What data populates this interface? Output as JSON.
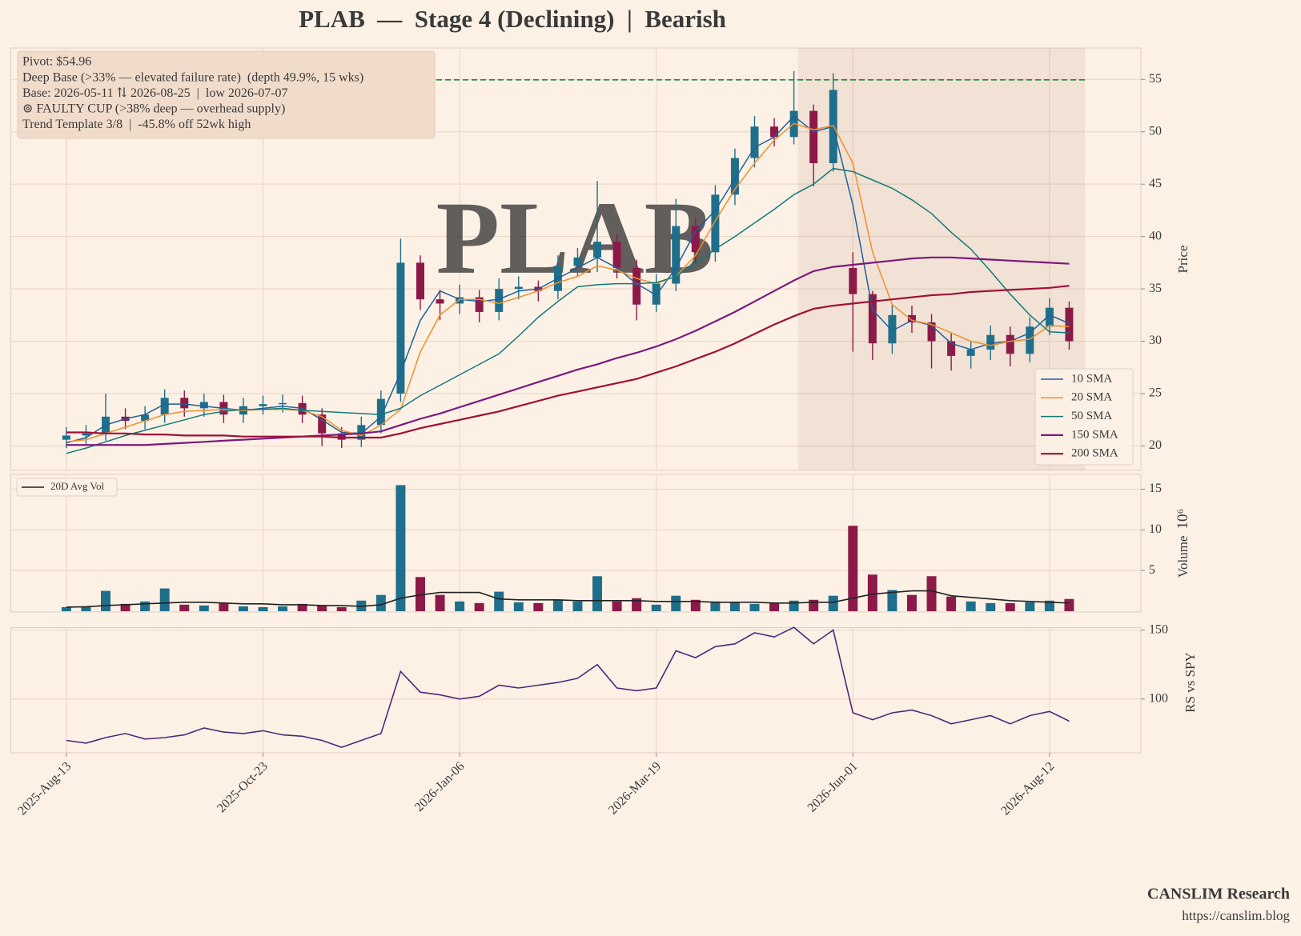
{
  "title": "PLAB  —  Stage 4 (Declining)  |  Bearish",
  "footer": {
    "brand": "CANSLIM Research",
    "url": "https://canslim.blog"
  },
  "chart_data": [
    {
      "type": "candlestick",
      "y_label": "Price",
      "watermark": "PLAB",
      "annotations": [
        "Pivot: $54.96",
        "Deep Base (>33% — elevated failure rate)  (depth 49.9%, 15 wks)",
        "Base: 2026-05-11 ⇅ 2026-08-25  |  low 2026-07-07",
        "⊚ FAULTY CUP (>38% deep — overhead supply)",
        "Trend Template 3/8  |  -45.8% off 52wk high"
      ],
      "pivot": 54.96,
      "pivot_color": "#1e8a3c",
      "highlight_xlim": [
        37.2,
        51.8
      ],
      "up_color": "#1f6f8b",
      "down_color": "#8c1a48",
      "ylim": [
        17.7,
        58.0
      ],
      "yticks": [
        20,
        25,
        30,
        35,
        40,
        45,
        50,
        55
      ],
      "grid": true,
      "legend": "lower right",
      "open": [
        20.6,
        21.0,
        21.2,
        22.8,
        22.4,
        23.0,
        24.6,
        23.6,
        24.2,
        23.0,
        23.8,
        24.0,
        24.1,
        23.0,
        21.2,
        20.6,
        22.0,
        25.0,
        37.5,
        34.0,
        33.6,
        34.2,
        32.8,
        35.0,
        35.2,
        34.8,
        37.2,
        38.0,
        39.5,
        37.0,
        33.5,
        35.5,
        41.0,
        38.5,
        44.0,
        47.5,
        50.5,
        49.5,
        52.0,
        47.0,
        37.0,
        34.5,
        29.8,
        32.5,
        31.8,
        30.0,
        28.6,
        29.2,
        30.6,
        28.8,
        31.4,
        33.2
      ],
      "high": [
        21.8,
        22.0,
        25.0,
        23.6,
        23.8,
        25.4,
        25.3,
        25.0,
        24.9,
        24.6,
        24.8,
        24.9,
        24.8,
        23.6,
        21.8,
        22.8,
        25.3,
        39.8,
        38.2,
        34.9,
        35.4,
        34.9,
        36.0,
        36.2,
        35.8,
        38.2,
        38.9,
        45.3,
        40.2,
        37.8,
        36.4,
        43.6,
        41.8,
        44.9,
        48.4,
        51.5,
        51.3,
        55.8,
        52.6,
        55.6,
        38.5,
        34.8,
        33.5,
        33.4,
        32.6,
        30.8,
        30.0,
        31.5,
        31.4,
        32.3,
        34.1,
        33.8
      ],
      "low": [
        19.8,
        20.2,
        20.5,
        21.6,
        21.6,
        22.2,
        22.8,
        22.8,
        22.2,
        22.2,
        23.0,
        23.2,
        22.2,
        20.0,
        19.8,
        19.9,
        21.2,
        24.2,
        33.0,
        32.0,
        32.6,
        31.8,
        32.0,
        34.0,
        33.8,
        34.0,
        36.2,
        36.6,
        36.0,
        32.0,
        32.8,
        34.8,
        37.4,
        37.6,
        43.0,
        46.6,
        48.6,
        48.8,
        44.8,
        46.2,
        29.0,
        28.2,
        28.8,
        30.8,
        27.4,
        27.2,
        27.4,
        28.2,
        27.6,
        28.0,
        30.6,
        29.2
      ],
      "close": [
        21.0,
        21.2,
        22.8,
        22.4,
        23.0,
        24.6,
        23.6,
        24.2,
        23.0,
        23.8,
        24.0,
        24.1,
        23.0,
        21.2,
        20.6,
        22.0,
        24.5,
        37.5,
        34.0,
        33.6,
        34.2,
        32.8,
        35.0,
        35.2,
        34.8,
        37.2,
        38.0,
        39.5,
        37.0,
        33.5,
        35.5,
        41.0,
        38.5,
        44.0,
        47.5,
        50.5,
        49.5,
        52.0,
        47.0,
        54.0,
        34.5,
        29.8,
        32.5,
        31.8,
        30.0,
        28.6,
        29.2,
        30.6,
        28.8,
        31.4,
        33.2,
        30.0
      ],
      "series": [
        {
          "name": "10 SMA",
          "color": "#1f5f9a",
          "values": [
            20.3,
            20.8,
            22.0,
            22.6,
            23.0,
            24.0,
            24.0,
            23.8,
            23.6,
            23.4,
            23.6,
            23.8,
            23.6,
            22.5,
            21.3,
            21.2,
            22.8,
            27.0,
            32.0,
            34.8,
            34.0,
            33.8,
            34.0,
            34.8,
            35.0,
            36.0,
            37.0,
            38.0,
            37.0,
            35.5,
            34.4,
            37.0,
            40.5,
            42.5,
            45.5,
            48.5,
            49.5,
            51.5,
            50.0,
            50.5,
            43.0,
            33.0,
            31.0,
            32.0,
            31.5,
            29.8,
            29.2,
            29.8,
            30.0,
            30.8,
            32.5,
            31.7
          ]
        },
        {
          "name": "20 SMA",
          "color": "#f28e2b",
          "values": [
            20.4,
            20.6,
            21.2,
            21.8,
            22.4,
            23.0,
            23.3,
            23.4,
            23.5,
            23.4,
            23.5,
            23.5,
            23.4,
            22.8,
            21.5,
            21.0,
            22.0,
            23.5,
            29.0,
            32.5,
            34.0,
            34.0,
            33.6,
            34.2,
            34.8,
            35.6,
            36.2,
            37.2,
            36.8,
            36.0,
            35.5,
            36.2,
            38.2,
            41.5,
            44.5,
            47.0,
            49.2,
            50.8,
            50.2,
            50.6,
            47.0,
            38.5,
            33.5,
            32.0,
            31.6,
            30.8,
            30.0,
            29.6,
            30.0,
            30.2,
            31.5,
            31.4
          ]
        },
        {
          "name": "50 SMA",
          "color": "#127a7a",
          "values": [
            19.3,
            19.8,
            20.4,
            21.0,
            21.5,
            22.0,
            22.5,
            23.0,
            23.3,
            23.5,
            23.5,
            23.6,
            23.4,
            23.3,
            23.2,
            23.1,
            23.0,
            23.6,
            24.8,
            25.8,
            26.8,
            27.8,
            28.8,
            30.5,
            32.3,
            33.8,
            35.2,
            35.4,
            35.5,
            35.5,
            35.6,
            36.2,
            37.4,
            38.8,
            40.0,
            41.3,
            42.6,
            44.0,
            45.0,
            46.5,
            46.2,
            45.4,
            44.6,
            43.5,
            42.2,
            40.4,
            38.8,
            36.7,
            34.5,
            32.5,
            30.9,
            30.8
          ]
        },
        {
          "name": "150 SMA",
          "color": "#7b1a7e",
          "values": [
            20.1,
            20.1,
            20.1,
            20.1,
            20.1,
            20.2,
            20.3,
            20.4,
            20.5,
            20.6,
            20.7,
            20.8,
            20.9,
            21.0,
            21.1,
            21.2,
            21.4,
            22.0,
            22.6,
            23.1,
            23.7,
            24.3,
            24.9,
            25.5,
            26.1,
            26.7,
            27.3,
            27.8,
            28.4,
            28.9,
            29.5,
            30.2,
            31.0,
            31.9,
            32.8,
            33.8,
            34.8,
            35.8,
            36.7,
            37.1,
            37.3,
            37.5,
            37.7,
            37.9,
            38.0,
            38.0,
            37.9,
            37.8,
            37.7,
            37.6,
            37.5,
            37.4
          ]
        },
        {
          "name": "200 SMA",
          "color": "#a0103a",
          "values": [
            21.3,
            21.3,
            21.2,
            21.2,
            21.1,
            21.1,
            21.0,
            21.0,
            21.0,
            20.9,
            20.9,
            20.9,
            20.9,
            20.9,
            20.8,
            20.8,
            20.8,
            21.2,
            21.7,
            22.1,
            22.5,
            22.9,
            23.3,
            23.8,
            24.3,
            24.8,
            25.2,
            25.6,
            26.0,
            26.4,
            27.0,
            27.6,
            28.3,
            29.0,
            29.8,
            30.7,
            31.6,
            32.4,
            33.1,
            33.4,
            33.6,
            33.8,
            34.0,
            34.2,
            34.4,
            34.5,
            34.7,
            34.8,
            34.9,
            35.0,
            35.1,
            35.3
          ]
        }
      ]
    },
    {
      "type": "bar",
      "y_label": "Volume",
      "y_multiplier": "10⁶",
      "ylim": [
        0,
        16.6
      ],
      "yticks": [
        5,
        10,
        15
      ],
      "grid": true,
      "legend": "upper left",
      "values": [
        0.5,
        0.6,
        2.5,
        0.9,
        1.2,
        2.8,
        0.8,
        0.7,
        1.0,
        0.6,
        0.5,
        0.6,
        0.9,
        0.7,
        0.5,
        1.3,
        2.0,
        15.5,
        4.2,
        2.0,
        1.2,
        1.0,
        2.4,
        1.1,
        1.0,
        1.4,
        1.2,
        4.3,
        1.2,
        1.6,
        0.8,
        1.9,
        1.4,
        1.2,
        1.1,
        0.9,
        1.0,
        1.3,
        1.4,
        1.9,
        10.5,
        4.5,
        2.6,
        2.0,
        4.3,
        1.8,
        1.2,
        1.0,
        1.0,
        1.1,
        1.3,
        1.5
      ],
      "series": [
        {
          "name": "20D Avg Vol",
          "color": "#222222",
          "values": [
            0.5,
            0.55,
            0.7,
            0.8,
            0.9,
            1.0,
            1.1,
            1.1,
            1.0,
            0.9,
            0.9,
            0.8,
            0.8,
            0.7,
            0.7,
            0.6,
            0.8,
            1.6,
            2.0,
            2.3,
            2.3,
            2.3,
            1.5,
            1.4,
            1.4,
            1.4,
            1.3,
            1.3,
            1.3,
            1.3,
            1.2,
            1.2,
            1.2,
            1.1,
            1.1,
            1.1,
            1.0,
            1.0,
            1.1,
            1.1,
            1.6,
            2.1,
            2.3,
            2.5,
            2.5,
            1.9,
            1.7,
            1.5,
            1.3,
            1.2,
            1.1,
            1.0
          ]
        }
      ]
    },
    {
      "type": "line",
      "y_label": "RS vs SPY",
      "color": "#4b2a7b",
      "ylim": [
        61,
        151.8
      ],
      "yticks": [
        100,
        150
      ],
      "grid": true,
      "categories": [
        "2025-Aug-13",
        null,
        null,
        null,
        null,
        null,
        null,
        null,
        null,
        null,
        "2025-Oct-23",
        null,
        null,
        null,
        null,
        null,
        null,
        null,
        null,
        null,
        "2026-Jan-06",
        null,
        null,
        null,
        null,
        null,
        null,
        null,
        null,
        null,
        "2026-Mar-19",
        null,
        null,
        null,
        null,
        null,
        null,
        null,
        null,
        null,
        "2026-Jun-01",
        null,
        null,
        null,
        null,
        null,
        null,
        null,
        null,
        null,
        "2026-Aug-12",
        null
      ],
      "values": [
        70,
        68,
        72,
        75,
        71,
        72,
        74,
        79,
        76,
        75,
        77,
        74,
        73,
        70,
        65,
        70,
        75,
        120,
        105,
        103,
        100,
        102,
        110,
        108,
        110,
        112,
        115,
        125,
        108,
        106,
        108,
        135,
        130,
        138,
        140,
        148,
        145,
        152,
        140,
        150,
        90,
        85,
        90,
        92,
        88,
        82,
        85,
        88,
        82,
        88,
        91,
        84
      ]
    }
  ]
}
